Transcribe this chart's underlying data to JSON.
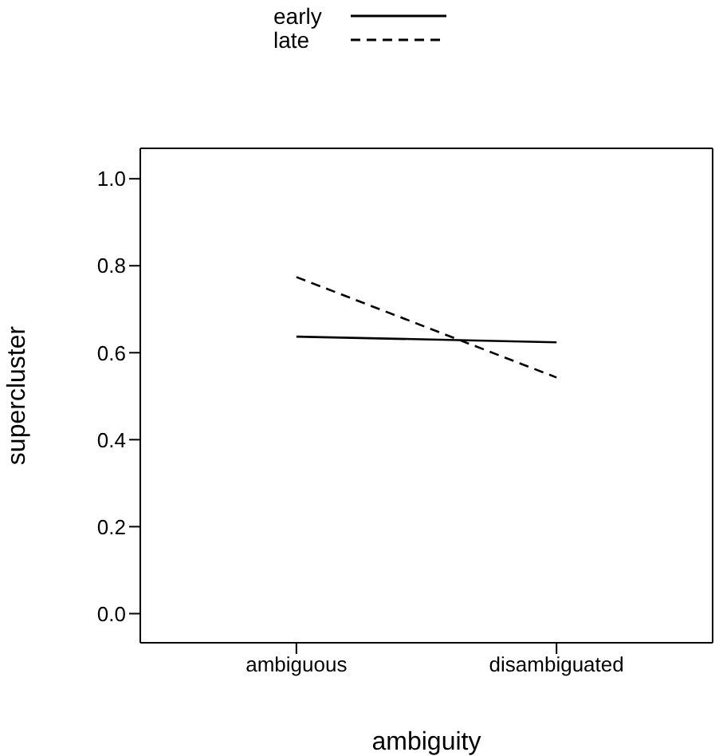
{
  "chart_data": {
    "type": "line",
    "xlabel": "ambiguity",
    "ylabel": "supercluster",
    "categories": [
      "ambiguous",
      "disambiguated"
    ],
    "series": [
      {
        "name": "early",
        "color": "#000000",
        "line_style": "solid",
        "values": [
          0.637,
          0.624
        ]
      },
      {
        "name": "late",
        "color": "#000000",
        "line_style": "dashed",
        "values": [
          0.774,
          0.543
        ]
      }
    ],
    "ylim": [
      -0.067,
      1.07
    ],
    "yticks": [
      {
        "value": 0,
        "label": "0.0"
      },
      0.2,
      0.4,
      0.6,
      0.8,
      {
        "value": 1,
        "label": "1.0"
      }
    ],
    "grid": false,
    "legend": "top",
    "marker": "none"
  }
}
